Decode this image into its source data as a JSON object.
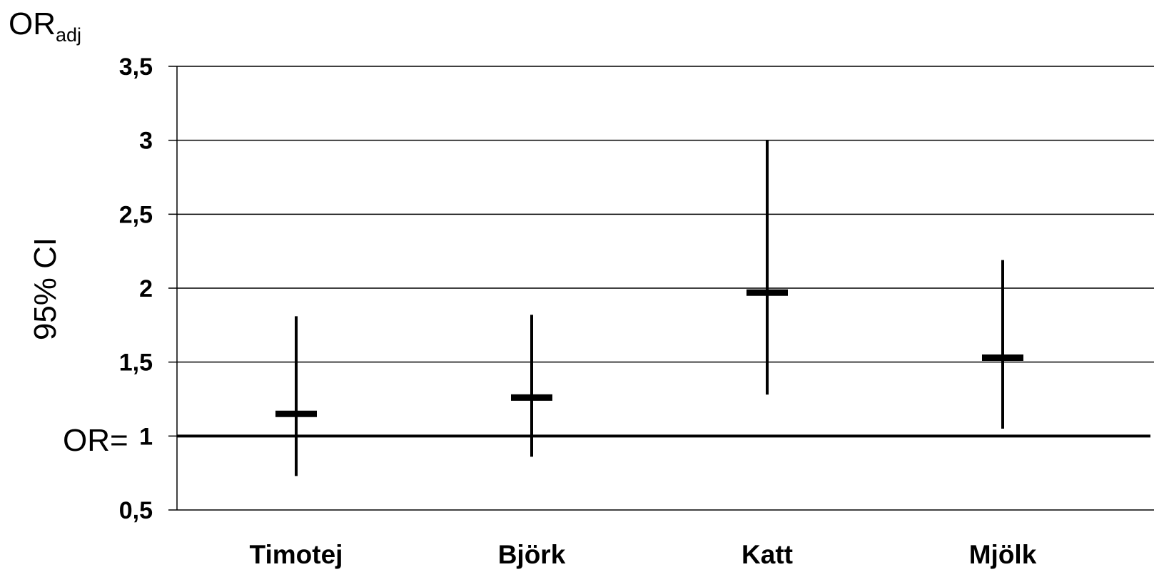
{
  "chart_data": {
    "type": "errorbar",
    "title": "",
    "xlabel": "",
    "ylabel": "95% CI",
    "top_label": {
      "main": "OR",
      "sub": "adj"
    },
    "reference_line": {
      "value": 1,
      "label": "OR="
    },
    "ylim": [
      0.5,
      3.5
    ],
    "yticks": [
      {
        "value": 3.5,
        "label": "3,5"
      },
      {
        "value": 3,
        "label": "3"
      },
      {
        "value": 2.5,
        "label": "2,5"
      },
      {
        "value": 2,
        "label": "2"
      },
      {
        "value": 1.5,
        "label": "1,5"
      },
      {
        "value": 1,
        "label": "1"
      },
      {
        "value": 0.5,
        "label": "0,5"
      }
    ],
    "grid": true,
    "categories": [
      "Timotej",
      "Björk",
      "Katt",
      "Mjölk"
    ],
    "estimates": [
      1.15,
      1.26,
      1.97,
      1.53
    ],
    "lower": [
      0.73,
      0.86,
      1.28,
      1.05
    ],
    "upper": [
      1.81,
      1.82,
      3.0,
      2.19
    ],
    "colors": {
      "line": "#000000",
      "background": "#ffffff"
    }
  }
}
